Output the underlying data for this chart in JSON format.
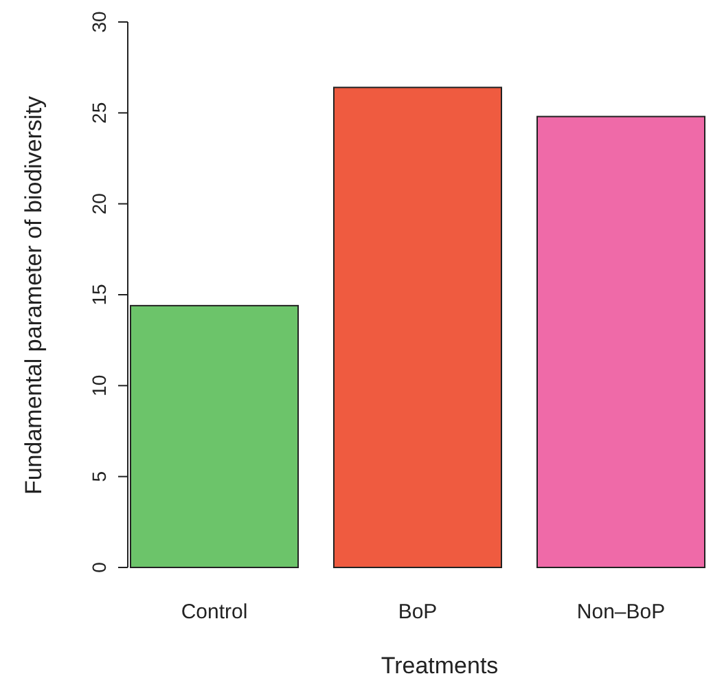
{
  "chart_data": {
    "type": "bar",
    "xlabel": "Treatments",
    "ylabel": "Fundamental parameter of biodiversity",
    "categories": [
      "Control",
      "BoP",
      "Non–BoP"
    ],
    "values": [
      14.4,
      26.4,
      24.8
    ],
    "colors": [
      "#6cc46a",
      "#ef5b40",
      "#ef6aa8"
    ],
    "ylim": [
      0,
      30
    ],
    "yticks": [
      0,
      5,
      10,
      15,
      20,
      25,
      30
    ],
    "grid": false
  }
}
